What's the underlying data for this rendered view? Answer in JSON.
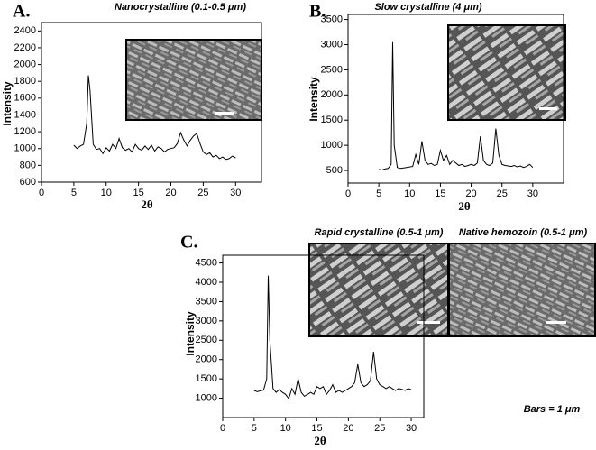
{
  "chart_data": [
    {
      "type": "line",
      "panel_label": "A.",
      "title": "Nanocrystalline (0.1-0.5 μm)",
      "x_label": "2θ",
      "y_label": "Intensity",
      "color": "#000000",
      "x": [
        5,
        5.5,
        6,
        6.5,
        7,
        7.25,
        7.5,
        8,
        8.5,
        9,
        9.5,
        10,
        10.5,
        11,
        11.5,
        12,
        12.5,
        13,
        13.5,
        14,
        14.5,
        15,
        15.5,
        16,
        16.5,
        17,
        17.5,
        18,
        18.5,
        19,
        19.5,
        20,
        20.5,
        21,
        21.5,
        22,
        22.5,
        23,
        23.5,
        24,
        24.5,
        25,
        25.5,
        26,
        26.5,
        27,
        27.5,
        28,
        28.5,
        29,
        29.5,
        30
      ],
      "values": [
        1040,
        1000,
        1030,
        1050,
        1300,
        1870,
        1700,
        1050,
        990,
        1000,
        940,
        1010,
        970,
        1050,
        1000,
        1120,
        1010,
        980,
        1000,
        960,
        1050,
        1000,
        980,
        1030,
        990,
        1040,
        970,
        1020,
        1000,
        960,
        990,
        1000,
        1010,
        1060,
        1190,
        1100,
        1030,
        1100,
        1150,
        1180,
        1060,
        960,
        930,
        950,
        900,
        920,
        880,
        900,
        870,
        880,
        910,
        890
      ],
      "xlim": [
        0,
        34
      ],
      "ylim": [
        600,
        2500
      ],
      "xticks": [
        0,
        5,
        10,
        15,
        20,
        25,
        30
      ],
      "yticks": [
        600,
        800,
        1000,
        1200,
        1400,
        1600,
        1800,
        2000,
        2200,
        2400
      ]
    },
    {
      "type": "line",
      "panel_label": "B.",
      "title": "Slow crystalline (4 μm)",
      "x_label": "2θ",
      "y_label": "Intensity",
      "color": "#000000",
      "x": [
        5,
        5.5,
        6,
        6.5,
        7,
        7.25,
        7.5,
        8,
        8.5,
        9,
        9.5,
        10,
        10.5,
        11,
        11.5,
        12,
        12.5,
        13,
        13.5,
        14,
        14.5,
        15,
        15.5,
        16,
        16.5,
        17,
        17.5,
        18,
        18.5,
        19,
        19.5,
        20,
        20.5,
        21,
        21.5,
        22,
        22.5,
        23,
        23.5,
        24,
        24.5,
        25,
        25.5,
        26,
        26.5,
        27,
        27.5,
        28,
        28.5,
        29,
        29.5,
        30
      ],
      "values": [
        520,
        510,
        530,
        540,
        620,
        3050,
        1000,
        560,
        540,
        550,
        560,
        570,
        580,
        820,
        620,
        1080,
        700,
        620,
        640,
        600,
        620,
        900,
        700,
        800,
        620,
        700,
        650,
        600,
        620,
        580,
        600,
        620,
        600,
        650,
        1180,
        700,
        620,
        600,
        650,
        1330,
        800,
        620,
        600,
        590,
        580,
        600,
        570,
        590,
        560,
        580,
        620,
        560
      ],
      "xlim": [
        0,
        35
      ],
      "ylim": [
        250,
        3600
      ],
      "xticks": [
        0,
        5,
        10,
        15,
        20,
        25,
        30
      ],
      "yticks": [
        500,
        1000,
        1500,
        2000,
        2500,
        3000,
        3500
      ]
    },
    {
      "type": "line",
      "panel_label": "C.",
      "x_label": "2θ",
      "y_label": "Intensity",
      "color": "#000000",
      "image_captions": [
        "Rapid crystalline (0.5-1 μm)",
        "Native hemozoin (0.5-1 μm)"
      ],
      "annotation": "Bars = 1 μm",
      "x": [
        5,
        5.5,
        6,
        6.5,
        7,
        7.25,
        7.5,
        8,
        8.5,
        9,
        9.5,
        10,
        10.5,
        11,
        11.5,
        12,
        12.5,
        13,
        13.5,
        14,
        14.5,
        15,
        15.5,
        16,
        16.5,
        17,
        17.5,
        18,
        18.5,
        19,
        19.5,
        20,
        20.5,
        21,
        21.5,
        22,
        22.5,
        23,
        23.5,
        24,
        24.5,
        25,
        25.5,
        26,
        26.5,
        27,
        27.5,
        28,
        28.5,
        29,
        29.5,
        30
      ],
      "values": [
        1200,
        1170,
        1190,
        1210,
        1500,
        4170,
        2500,
        1250,
        1150,
        1220,
        1150,
        1100,
        990,
        1250,
        1100,
        1500,
        1150,
        1050,
        1100,
        1150,
        1100,
        1300,
        1250,
        1300,
        1100,
        1200,
        1350,
        1150,
        1200,
        1150,
        1200,
        1250,
        1300,
        1400,
        1880,
        1400,
        1300,
        1350,
        1450,
        2200,
        1500,
        1350,
        1300,
        1250,
        1300,
        1250,
        1200,
        1250,
        1230,
        1200,
        1250,
        1220
      ],
      "xlim": [
        0,
        32
      ],
      "ylim": [
        500,
        4700
      ],
      "xticks": [
        0,
        5,
        10,
        15,
        20,
        25,
        30
      ],
      "yticks": [
        1000,
        1500,
        2000,
        2500,
        3000,
        3500,
        4000,
        4500
      ]
    }
  ]
}
